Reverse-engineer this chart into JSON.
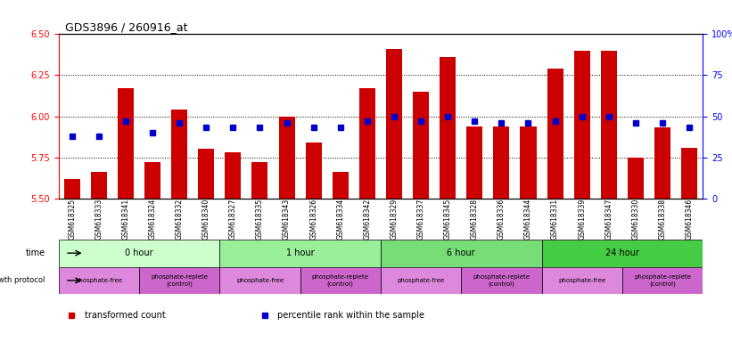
{
  "title": "GDS3896 / 260916_at",
  "samples": [
    "GSM618325",
    "GSM618333",
    "GSM618341",
    "GSM618324",
    "GSM618332",
    "GSM618340",
    "GSM618327",
    "GSM618335",
    "GSM618343",
    "GSM618326",
    "GSM618334",
    "GSM618342",
    "GSM618329",
    "GSM618337",
    "GSM618345",
    "GSM618328",
    "GSM618336",
    "GSM618344",
    "GSM618331",
    "GSM618339",
    "GSM618347",
    "GSM618330",
    "GSM618338",
    "GSM618346"
  ],
  "red_values": [
    5.62,
    5.66,
    6.17,
    5.72,
    6.04,
    5.8,
    5.78,
    5.72,
    6.0,
    5.84,
    5.66,
    6.17,
    6.41,
    6.15,
    6.36,
    5.94,
    5.94,
    5.94,
    6.29,
    6.4,
    6.4,
    5.75,
    5.93,
    5.81
  ],
  "blue_values": [
    0.38,
    0.38,
    0.47,
    0.4,
    0.46,
    0.43,
    0.43,
    0.43,
    0.46,
    0.43,
    0.43,
    0.47,
    0.5,
    0.47,
    0.5,
    0.47,
    0.46,
    0.46,
    0.47,
    0.5,
    0.5,
    0.46,
    0.46,
    0.43
  ],
  "ylim_left": [
    5.5,
    6.5
  ],
  "yticks_left": [
    5.5,
    5.75,
    6.0,
    6.25,
    6.5
  ],
  "yticks_right": [
    0,
    25,
    50,
    75,
    100
  ],
  "ylim_right": [
    0,
    100
  ],
  "bar_color": "#cc0000",
  "dot_color": "#0000cc",
  "bar_bottom": 5.5,
  "time_groups": [
    {
      "label": "0 hour",
      "start": 0,
      "end": 6,
      "color": "#ccffcc"
    },
    {
      "label": "1 hour",
      "start": 6,
      "end": 12,
      "color": "#99ee99"
    },
    {
      "label": "6 hour",
      "start": 12,
      "end": 18,
      "color": "#77dd77"
    },
    {
      "label": "24 hour",
      "start": 18,
      "end": 24,
      "color": "#44cc44"
    }
  ],
  "protocol_groups": [
    {
      "label": "phosphate-free",
      "start": 0,
      "end": 3,
      "color": "#dd88dd"
    },
    {
      "label": "phosphate-replete\n(control)",
      "start": 3,
      "end": 6,
      "color": "#cc66cc"
    },
    {
      "label": "phosphate-free",
      "start": 6,
      "end": 9,
      "color": "#dd88dd"
    },
    {
      "label": "phosphate-replete\n(control)",
      "start": 9,
      "end": 12,
      "color": "#cc66cc"
    },
    {
      "label": "phosphate-free",
      "start": 12,
      "end": 15,
      "color": "#dd88dd"
    },
    {
      "label": "phosphate-replete\n(control)",
      "start": 15,
      "end": 18,
      "color": "#cc66cc"
    },
    {
      "label": "phosphate-free",
      "start": 18,
      "end": 21,
      "color": "#dd88dd"
    },
    {
      "label": "phosphate-replete\n(control)",
      "start": 21,
      "end": 24,
      "color": "#cc66cc"
    }
  ],
  "legend_items": [
    {
      "label": "transformed count",
      "color": "#cc0000",
      "marker": "s"
    },
    {
      "label": "percentile rank within the sample",
      "color": "#0000cc",
      "marker": "s"
    }
  ]
}
